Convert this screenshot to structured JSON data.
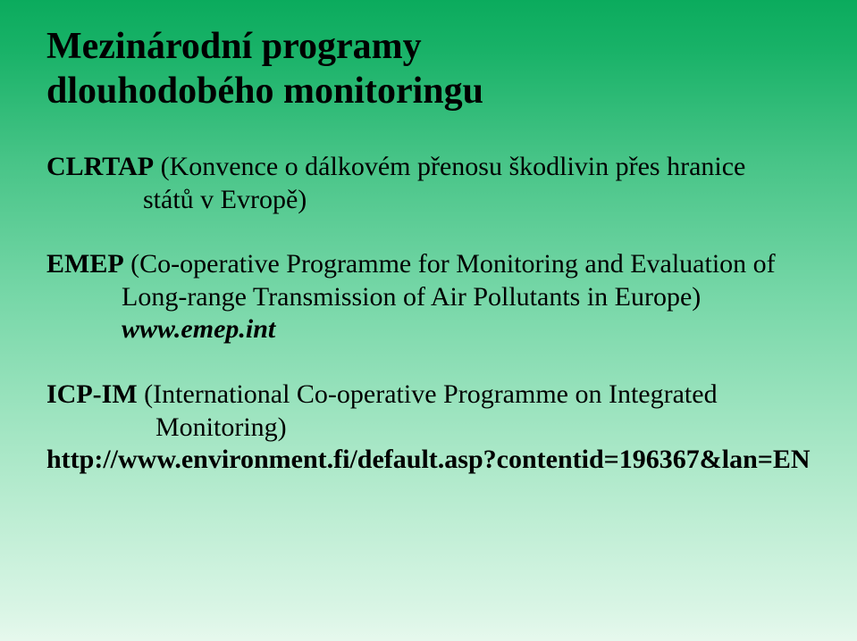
{
  "title": {
    "line1": "Mezinárodní programy",
    "line2": "dlouhodobého monitoringu",
    "color": "#000000",
    "fontsize": 42,
    "fontweight": "bold"
  },
  "p1": {
    "acronym": "CLRTAP",
    "tail_line1": " (Konvence o dálkovém přenosu škodlivin přes hranice",
    "tail_line2": "států v Evropě)"
  },
  "p2": {
    "acronym": "EMEP",
    "tail_line1": " (Co-operative Programme for Monitoring and Evaluation of",
    "tail_line2": "Long-range Transmission of Air Pollutants in Europe)",
    "url_line": "www.emep.int"
  },
  "p3": {
    "acronym": "ICP-IM",
    "tail_line1": " (International Co-operative Programme on Integrated",
    "tail_line2": "Monitoring)",
    "url_line": "http://www.environment.fi/default.asp?contentid=196367&lan=EN"
  },
  "style": {
    "body_fontsize": 30,
    "body_color": "#000000",
    "background_gradient_top": "#0bab5d",
    "background_gradient_bottom": "#e6f8ed",
    "font_family": "Times New Roman"
  }
}
